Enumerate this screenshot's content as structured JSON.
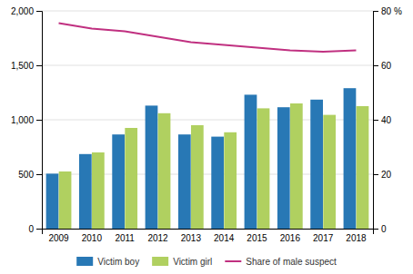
{
  "chart_data": {
    "type": "bar",
    "categories": [
      "2009",
      "2010",
      "2011",
      "2012",
      "2013",
      "2014",
      "2015",
      "2016",
      "2017",
      "2018"
    ],
    "series": [
      {
        "name": "Victim boy",
        "color": "#2878b5",
        "values": [
          505,
          685,
          865,
          1130,
          865,
          845,
          1230,
          1115,
          1185,
          1290
        ]
      },
      {
        "name": "Victim girl",
        "color": "#b0d060",
        "values": [
          525,
          700,
          925,
          1060,
          950,
          885,
          1105,
          1150,
          1045,
          1125
        ]
      },
      {
        "name": "Share of male suspect",
        "type": "line",
        "axis": "y2",
        "color": "#c03080",
        "values": [
          75.5,
          73.5,
          72.5,
          70.5,
          68.5,
          67.5,
          66.5,
          65.5,
          65.0,
          65.5
        ]
      }
    ],
    "ylim": [
      0,
      2000
    ],
    "yticks": [
      0,
      500,
      {
        "value": 1000,
        "label": "1,000"
      },
      {
        "value": 1500,
        "label": "1,500"
      },
      {
        "value": 2000,
        "label": "2,000"
      }
    ],
    "y2lim": [
      0,
      80
    ],
    "y2ticks": [
      0,
      20,
      40,
      60,
      {
        "value": 80,
        "label": "80 %"
      }
    ],
    "grid": true,
    "legend": "bottom"
  }
}
